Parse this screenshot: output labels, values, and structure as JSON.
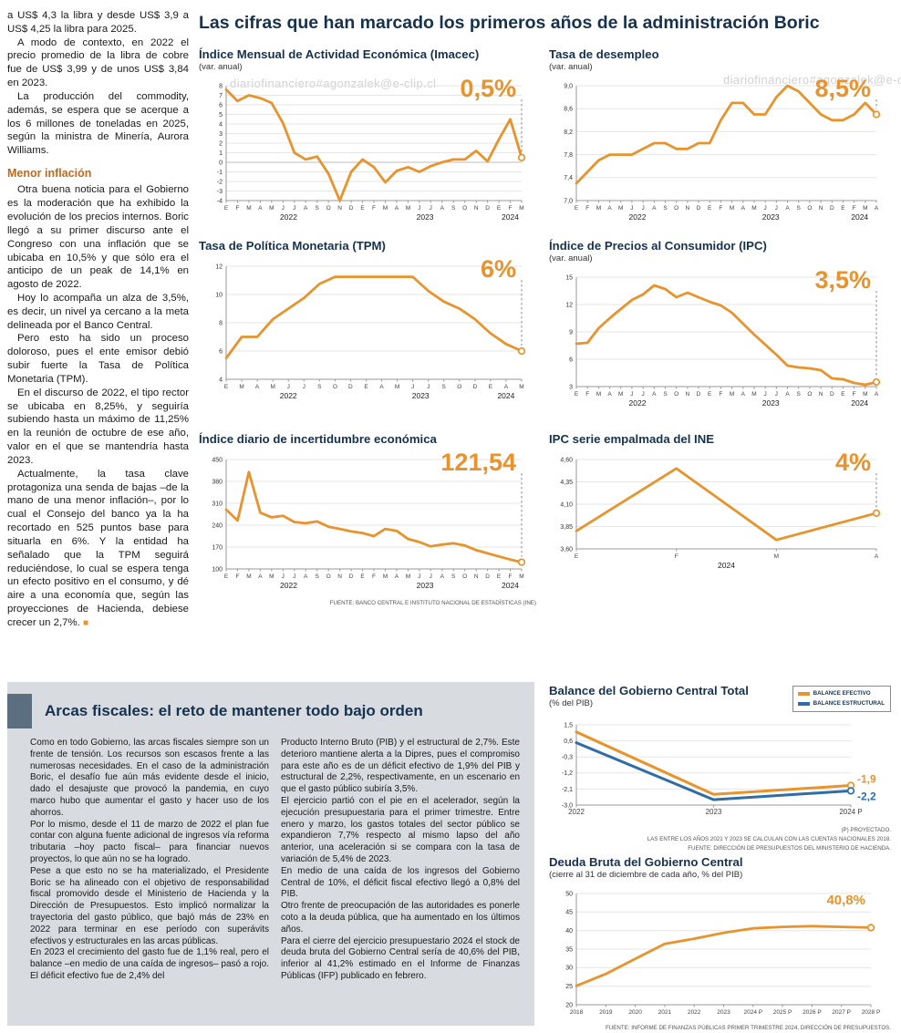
{
  "watermark": "diariofinanciero#agonzalek@e-clip.cl",
  "main_title": "Las cifras que han marcado los primeros años de la administración Boric",
  "left_article": {
    "paragraphs_top": [
      "a US$ 4,3 la libra y desde US$ 3,9 a US$ 4,25 la libra para 2025.",
      "A modo de contexto, en 2022 el precio promedio de la libra de cobre fue de US$ 3,99 y de unos US$ 3,84 en 2023.",
      "La producción del commodity, además, se espera que se acerque a los 6 millones de toneladas en 2025, según la ministra de Minería, Aurora Williams."
    ],
    "subhead": "Menor inflación",
    "paragraphs_inflation": [
      "Otra buena noticia para el Gobierno es la moderación que ha exhibido la evolución de los precios internos. Boric llegó a su primer discurso ante el Congreso con una inflación que se ubicaba en 10,5% y que sólo era el anticipo de un peak de 14,1% en agosto de 2022.",
      "Hoy lo acompaña un alza de 3,5%, es decir, un nivel ya cercano a la meta delineada por el Banco Central.",
      "Pero esto ha sido un proceso doloroso, pues el ente emisor debió subir fuerte la Tasa de Política Monetaria (TPM).",
      "En el discurso de 2022, el tipo rector se ubicaba en 8,25%, y seguiría subiendo hasta un máximo de 11,25% en la reunión de octubre de ese año, valor en el que se mantendría hasta 2023."
    ],
    "last_paragraph": "Actualmente, la tasa clave protagoniza una senda de bajas –de la mano de una menor inflación–, por lo cual el Consejo del banco ya la ha recortado en 525 puntos base para situarla en 6%. Y la entidad ha señalado que la TPM seguirá reduciéndose, lo cual se espera tenga un efecto positivo en el consumo, y dé aire a una economía que, según las proyecciones de Hacienda, debiese crecer un 2,7%.",
    "end_mark": "■"
  },
  "charts_source": "FUENTE: BANCO CENTRAL E INSTITUTO NACIONAL DE ESTADÍSTICAS (INE)",
  "balance_legend": [
    {
      "label": "BALANCE EFECTIVO",
      "color": "#E8932C"
    },
    {
      "label": "BALANCE ESTRUCTURAL",
      "color": "#2F6DA8"
    }
  ],
  "fiscal_box": {
    "title": "Arcas fiscales: el reto de mantener todo bajo orden",
    "col1": [
      "Como en todo Gobierno, las arcas fiscales siempre son un frente de tensión. Los recursos son escasos frente a las numerosas necesidades. En el caso de la administración Boric, el desafío fue aún más evidente desde el inicio, dado el desajuste que provocó la pandemia, en cuyo marco hubo que aumentar el gasto y hacer uso de los ahorros.",
      "Por lo mismo, desde el 11 de marzo de 2022 el plan fue contar con alguna fuente adicional de ingresos vía reforma tributaria –hoy pacto fiscal– para financiar nuevos proyectos, lo que aún no se ha logrado.",
      "Pese a que esto no se ha materializado, el Presidente Boric se ha alineado con el objetivo de responsabilidad fiscal promovido desde el Ministerio de Hacienda y la Dirección de Presupuestos. Esto implicó normalizar la trayectoria del gasto público, que bajó más de 23% en 2022 para terminar en ese período con superávits efectivos y estructurales en las arcas públicas.",
      "En 2023 el crecimiento del gasto fue de 1,1% real, pero el balance –en medio de una caída de ingresos– pasó a rojo. El déficit efectivo fue de 2,4% del"
    ],
    "col2": [
      "Producto Interno Bruto (PIB) y el estructural de 2,7%. Este deterioro mantiene alerta a la Dipres, pues el compromiso para este año es de un déficit efectivo de 1,9% del PIB y estructural de 2,2%, respectivamente, en un escenario en que el gasto público subiría 3,5%.",
      "El ejercicio partió con el pie en el acelerador, según la ejecución presupuestaria para el primer trimestre. Entre enero y marzo, los gastos totales del sector público se expandieron 7,7% respecto al mismo lapso del año anterior, una aceleración si se compara con la tasa de variación de 5,4% de 2023.",
      "En medio de una caída de los ingresos del Gobierno Central de 10%, el déficit fiscal efectivo llegó a 0,8% del PIB.",
      "Otro frente de preocupación de las autoridades es ponerle coto a la deuda pública, que ha aumentado en los últimos años.",
      "Para el cierre del ejercicio presupuestario 2024 el stock de deuda bruta del Gobierno Central sería de 40,6% del PIB, inferior al 41,2% estimado en el Informe de Finanzas Públicas (IFP) publicado en febrero."
    ]
  },
  "chart_data": [
    {
      "type": "line",
      "title": "Índice Mensual de Actividad Económica (Imacec)",
      "subtitle": "(var. anual)",
      "big": "0,5%",
      "ylim": [
        -4,
        8
      ],
      "y_ticks": [
        {
          "v": 8,
          "l": "8"
        },
        {
          "v": 7,
          "l": "7"
        },
        {
          "v": 6,
          "l": "6"
        },
        {
          "v": 5,
          "l": "5"
        },
        {
          "v": 4,
          "l": "4"
        },
        {
          "v": 3,
          "l": "3"
        },
        {
          "v": 2,
          "l": "2"
        },
        {
          "v": 1,
          "l": "1"
        },
        {
          "v": 0,
          "l": "0"
        },
        {
          "v": -1,
          "l": "-1"
        },
        {
          "v": -2,
          "l": "-2"
        },
        {
          "v": -3,
          "l": "-3"
        },
        {
          "v": -4,
          "l": "-4"
        }
      ],
      "x_labels": [
        "E",
        "F",
        "M",
        "A",
        "M",
        "J",
        "J",
        "A",
        "S",
        "O",
        "N",
        "D",
        "E",
        "F",
        "M",
        "A",
        "M",
        "J",
        "J",
        "A",
        "S",
        "O",
        "N",
        "D",
        "E",
        "F",
        "M"
      ],
      "year_labels": [
        {
          "label": "2022",
          "from": 0,
          "to": 11
        },
        {
          "label": "2023",
          "from": 12,
          "to": 23
        },
        {
          "label": "2024",
          "from": 24,
          "to": 26
        }
      ],
      "dash": true,
      "series": [
        {
          "name": "Imacec",
          "color": "#E8932C",
          "values": [
            7.6,
            6.4,
            7.0,
            6.7,
            6.2,
            4.1,
            1.0,
            0.3,
            0.6,
            -1.2,
            -4.0,
            -1.0,
            0.3,
            -0.5,
            -2.1,
            -0.9,
            -0.5,
            -1.0,
            -0.4,
            0.0,
            0.3,
            0.3,
            1.2,
            0.1,
            2.4,
            4.5,
            0.5
          ]
        }
      ]
    },
    {
      "type": "line",
      "title": "Tasa de desempleo",
      "subtitle": "(var. anual)",
      "big": "8,5%",
      "ylim": [
        7.0,
        9.0
      ],
      "y_ticks": [
        {
          "v": 9.0,
          "l": "9,0"
        },
        {
          "v": 8.6,
          "l": "8,6"
        },
        {
          "v": 8.2,
          "l": "8,2"
        },
        {
          "v": 7.8,
          "l": "7,8"
        },
        {
          "v": 7.4,
          "l": "7,4"
        },
        {
          "v": 7.0,
          "l": "7,0"
        }
      ],
      "x_labels": [
        "E",
        "F",
        "M",
        "A",
        "M",
        "J",
        "J",
        "A",
        "S",
        "O",
        "N",
        "D",
        "E",
        "F",
        "M",
        "A",
        "M",
        "J",
        "J",
        "A",
        "S",
        "O",
        "N",
        "D",
        "E",
        "F",
        "M",
        "A"
      ],
      "year_labels": [
        {
          "label": "2022",
          "from": 0,
          "to": 11
        },
        {
          "label": "2023",
          "from": 12,
          "to": 23
        },
        {
          "label": "2024",
          "from": 24,
          "to": 27
        }
      ],
      "dash": true,
      "series": [
        {
          "name": "Desempleo",
          "color": "#E8932C",
          "values": [
            7.3,
            7.5,
            7.7,
            7.8,
            7.8,
            7.8,
            7.9,
            8.0,
            8.0,
            7.9,
            7.9,
            8.0,
            8.0,
            8.4,
            8.7,
            8.7,
            8.5,
            8.5,
            8.8,
            9.0,
            8.9,
            8.7,
            8.5,
            8.4,
            8.4,
            8.5,
            8.7,
            8.5
          ]
        }
      ]
    },
    {
      "type": "line",
      "title": "Tasa de Política Monetaria (TPM)",
      "subtitle": "",
      "big": "6%",
      "ylim": [
        4,
        12
      ],
      "y_ticks": [
        {
          "v": 12,
          "l": "12"
        },
        {
          "v": 10,
          "l": "10"
        },
        {
          "v": 8,
          "l": "8"
        },
        {
          "v": 6,
          "l": "6"
        },
        {
          "v": 4,
          "l": "4"
        }
      ],
      "x_labels": [
        "E",
        "M",
        "A",
        "M",
        "J",
        "J",
        "S",
        "O",
        "D",
        "E",
        "A",
        "M",
        "J",
        "J",
        "S",
        "O",
        "D",
        "E",
        "A",
        "M"
      ],
      "year_labels": [
        {
          "label": "2022",
          "from": 0,
          "to": 8
        },
        {
          "label": "2023",
          "from": 9,
          "to": 16
        },
        {
          "label": "2024",
          "from": 17,
          "to": 19
        }
      ],
      "dash": true,
      "series": [
        {
          "name": "TPM",
          "color": "#E8932C",
          "values": [
            5.5,
            7.0,
            7.0,
            8.25,
            9.0,
            9.75,
            10.75,
            11.25,
            11.25,
            11.25,
            11.25,
            11.25,
            11.25,
            10.25,
            9.5,
            9.0,
            8.25,
            7.25,
            6.5,
            6.0
          ]
        }
      ]
    },
    {
      "type": "line",
      "title": "Índice de Precios al Consumidor (IPC)",
      "subtitle": "(var. anual)",
      "big": "3,5%",
      "ylim": [
        3,
        15
      ],
      "y_ticks": [
        {
          "v": 15,
          "l": "15"
        },
        {
          "v": 12,
          "l": "12"
        },
        {
          "v": 9,
          "l": "9"
        },
        {
          "v": 6,
          "l": "6"
        },
        {
          "v": 3,
          "l": "3"
        }
      ],
      "x_labels": [
        "E",
        "F",
        "M",
        "A",
        "M",
        "J",
        "J",
        "A",
        "S",
        "O",
        "N",
        "D",
        "E",
        "F",
        "M",
        "A",
        "M",
        "J",
        "J",
        "A",
        "S",
        "O",
        "N",
        "D",
        "E",
        "F",
        "M",
        "A"
      ],
      "year_labels": [
        {
          "label": "2022",
          "from": 0,
          "to": 11
        },
        {
          "label": "2023",
          "from": 12,
          "to": 23
        },
        {
          "label": "2024",
          "from": 24,
          "to": 27
        }
      ],
      "dash": true,
      "series": [
        {
          "name": "IPC",
          "color": "#E8932C",
          "values": [
            7.7,
            7.8,
            9.4,
            10.5,
            11.5,
            12.5,
            13.1,
            14.1,
            13.7,
            12.8,
            13.3,
            12.8,
            12.3,
            11.9,
            11.1,
            9.9,
            8.7,
            7.6,
            6.5,
            5.3,
            5.1,
            5.0,
            4.8,
            3.9,
            3.8,
            3.4,
            3.2,
            3.5
          ]
        }
      ]
    },
    {
      "type": "line",
      "title": "Índice diario de incertidumbre económica",
      "subtitle": "",
      "big": "121,54",
      "ylim": [
        100,
        450
      ],
      "y_ticks": [
        {
          "v": 450,
          "l": "450"
        },
        {
          "v": 380,
          "l": "380"
        },
        {
          "v": 310,
          "l": "310"
        },
        {
          "v": 240,
          "l": "240"
        },
        {
          "v": 170,
          "l": "170"
        },
        {
          "v": 100,
          "l": "100"
        }
      ],
      "x_labels": [
        "E",
        "F",
        "M",
        "A",
        "M",
        "J",
        "J",
        "A",
        "S",
        "O",
        "N",
        "D",
        "E",
        "F",
        "M",
        "A",
        "M",
        "J",
        "J",
        "A",
        "S",
        "O",
        "N",
        "D",
        "E",
        "F",
        "M"
      ],
      "year_labels": [
        {
          "label": "2022",
          "from": 0,
          "to": 11
        },
        {
          "label": "2023",
          "from": 12,
          "to": 23
        },
        {
          "label": "2024",
          "from": 24,
          "to": 26
        }
      ],
      "dash": true,
      "series": [
        {
          "name": "Incertidumbre",
          "color": "#E8932C",
          "values": [
            290,
            255,
            410,
            280,
            265,
            270,
            250,
            246,
            252,
            235,
            228,
            220,
            215,
            205,
            228,
            222,
            196,
            186,
            172,
            178,
            182,
            175,
            160,
            150,
            140,
            130,
            121.54
          ]
        }
      ]
    },
    {
      "type": "line",
      "title": "IPC serie empalmada del INE",
      "subtitle": "",
      "big": "4%",
      "ylim": [
        3.6,
        4.6
      ],
      "y_ticks": [
        {
          "v": 4.6,
          "l": "4,60"
        },
        {
          "v": 4.35,
          "l": "4,35"
        },
        {
          "v": 4.1,
          "l": "4,10"
        },
        {
          "v": 3.85,
          "l": "3,85"
        },
        {
          "v": 3.6,
          "l": "3,60"
        }
      ],
      "x_labels": [
        "E",
        "F",
        "M",
        "A"
      ],
      "year_labels": [
        {
          "label": "2024",
          "from": 0,
          "to": 3
        }
      ],
      "dash": true,
      "series": [
        {
          "name": "IPC empalmado",
          "color": "#E8932C",
          "values": [
            3.8,
            4.5,
            3.7,
            4.0
          ]
        }
      ]
    },
    {
      "type": "line",
      "title": "Balance del Gobierno Central Total",
      "subtitle": "(% del PIB)",
      "ylim": [
        -3.0,
        1.5
      ],
      "y_ticks": [
        {
          "v": 1.5,
          "l": "1,5"
        },
        {
          "v": 0.6,
          "l": "0,6"
        },
        {
          "v": -0.3,
          "l": "-0,3"
        },
        {
          "v": -1.2,
          "l": "-1,2"
        },
        {
          "v": -2.1,
          "l": "-2,1"
        },
        {
          "v": -3.0,
          "l": "-3,0"
        }
      ],
      "x_labels": [
        "2022",
        "2023",
        "2024 P"
      ],
      "end_labels": [
        {
          "text": "-1,9",
          "color": "#E8932C"
        },
        {
          "text": "-2,2",
          "color": "#2F6DA8"
        }
      ],
      "series": [
        {
          "name": "Balance efectivo",
          "color": "#E8932C",
          "values": [
            1.1,
            -2.4,
            -1.9
          ]
        },
        {
          "name": "Balance estructural",
          "color": "#2F6DA8",
          "values": [
            0.5,
            -2.7,
            -2.2
          ]
        }
      ],
      "footnotes": [
        "(P) PROYECTADO.",
        "LAS ENTRE LOS AÑOS 2021 Y 2023 SE CALCULAN CON LAS CUENTAS NACIONALES 2018.",
        "FUENTE: DIRECCIÓN DE PRESUPUESTOS DEL MINISTERIO DE HACIENDA."
      ]
    },
    {
      "type": "line",
      "title": "Deuda Bruta del Gobierno Central",
      "subtitle": "(cierre al 31 de diciembre de cada año, % del PIB)",
      "big": "40,8%",
      "ylim": [
        20,
        50
      ],
      "y_ticks": [
        {
          "v": 50,
          "l": "50"
        },
        {
          "v": 45,
          "l": "45"
        },
        {
          "v": 40,
          "l": "40"
        },
        {
          "v": 35,
          "l": "35"
        },
        {
          "v": 30,
          "l": "30"
        },
        {
          "v": 25,
          "l": "25"
        },
        {
          "v": 20,
          "l": "20"
        }
      ],
      "x_labels": [
        "2018",
        "2019",
        "2020",
        "2021",
        "2022",
        "2023",
        "2024 P",
        "2025 P",
        "2026 P",
        "2027 P",
        "2028 P"
      ],
      "series": [
        {
          "name": "Deuda bruta",
          "color": "#E8932C",
          "values": [
            25.1,
            28.3,
            32.4,
            36.4,
            37.8,
            39.4,
            40.6,
            41.0,
            41.2,
            41.0,
            40.8
          ]
        }
      ],
      "footnotes": [
        "FUENTE: INFORME DE FINANZAS PÚBLICAS PRIMER TRIMESTRE 2024, DIRECCIÓN DE PRESUPUESTOS."
      ]
    }
  ]
}
